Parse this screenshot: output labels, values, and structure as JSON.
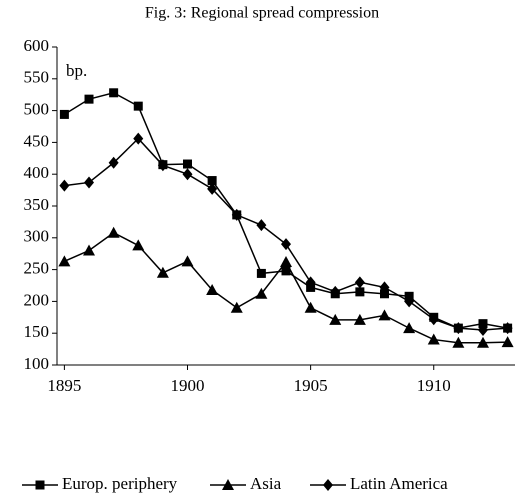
{
  "chart_data": {
    "type": "line",
    "title": "Fig. 3: Regional spread compression",
    "annotation": "bp.",
    "x": [
      1895,
      1896,
      1897,
      1898,
      1899,
      1900,
      1901,
      1902,
      1903,
      1904,
      1905,
      1906,
      1907,
      1908,
      1909,
      1910,
      1911,
      1912,
      1913
    ],
    "xlim": [
      1894.7,
      1913.3
    ],
    "xticks": [
      1895,
      1900,
      1905,
      1910
    ],
    "ylim": [
      100,
      600
    ],
    "yticks": [
      100,
      150,
      200,
      250,
      300,
      350,
      400,
      450,
      500,
      550,
      600
    ],
    "legend": "bottom",
    "grid": false,
    "series": [
      {
        "name": "Europ. periphery",
        "color": "#000000",
        "marker": "square",
        "values": [
          494,
          518,
          528,
          507,
          415,
          416,
          390,
          336,
          244,
          248,
          222,
          212,
          215,
          212,
          208,
          175,
          158,
          165,
          158
        ]
      },
      {
        "name": "Asia",
        "color": "#000000",
        "marker": "triangle",
        "values": [
          263,
          280,
          308,
          288,
          245,
          263,
          218,
          190,
          212,
          262,
          190,
          171,
          171,
          178,
          158,
          140,
          135,
          135,
          136
        ]
      },
      {
        "name": "Latin America",
        "color": "#000000",
        "marker": "diamond",
        "values": [
          382,
          387,
          418,
          456,
          414,
          400,
          377,
          336,
          320,
          290,
          230,
          215,
          230,
          222,
          200,
          172,
          158,
          155,
          158
        ]
      }
    ]
  }
}
